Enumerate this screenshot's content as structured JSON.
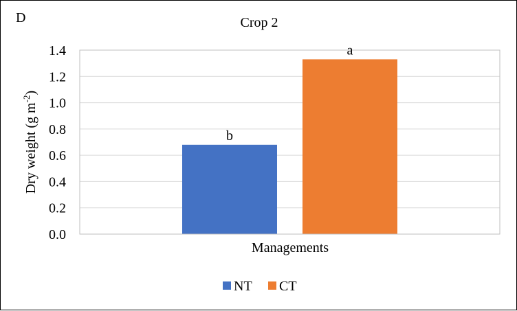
{
  "panel_label": "D",
  "chart_data": {
    "type": "bar",
    "title": "Crop 2",
    "xlabel": "Managements",
    "ylabel_main": "Dry weight (g m",
    "ylabel_sup": "-2",
    "ylabel_close": ")",
    "ylim": [
      0,
      1.4
    ],
    "yticks": [
      "0.0",
      "0.2",
      "0.4",
      "0.6",
      "0.8",
      "1.0",
      "1.2",
      "1.4"
    ],
    "grid": true,
    "legend_position": "bottom",
    "categories": [
      "Managements"
    ],
    "series": [
      {
        "name": "NT",
        "values": [
          0.68
        ],
        "color": "#4472C4",
        "significance": "b"
      },
      {
        "name": "CT",
        "values": [
          1.33
        ],
        "color": "#ED7D31",
        "significance": "a"
      }
    ]
  }
}
